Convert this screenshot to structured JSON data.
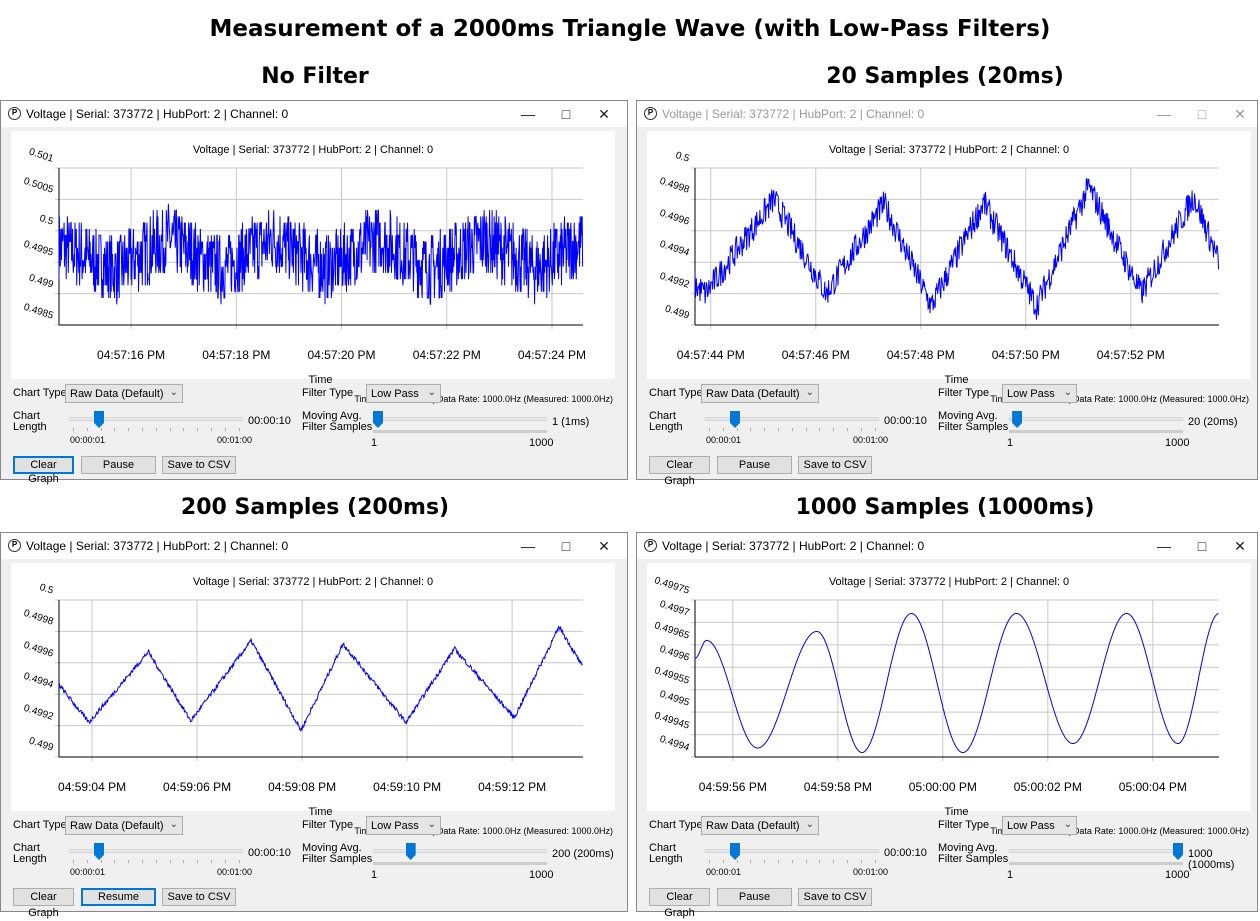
{
  "title": "Measurement of a 2000ms Triangle Wave (with Low-Pass Filters)",
  "colors": {
    "series": "#0000ff",
    "grid": "#c8c8c8",
    "slider": "#0078d7",
    "focus": "#0078d7"
  },
  "common": {
    "window_title": "Voltage | Serial: 373772 | HubPort: 2 | Channel: 0",
    "chart_title": "Voltage | Serial: 373772 | HubPort: 2 | Channel: 0",
    "x_axis_label": "Time",
    "footnote": "Time Base: Device |  Data Rate: 1000.0Hz (Measured: 1000.0Hz)",
    "chart_type_label": "Chart Type",
    "chart_type_value": "Raw Data (Default)",
    "filter_type_label": "Filter Type",
    "filter_type_value": "Low Pass",
    "chart_length_label_1": "Chart",
    "chart_length_label_2": "Length",
    "chart_length_value": "00:00:10",
    "chart_length_min": "00:00:01",
    "chart_length_max": "00:01:00",
    "filter_samples_label_1": "Moving Avg.",
    "filter_samples_label_2": "Filter Samples",
    "filter_samples_min": "1",
    "filter_samples_max": "1000",
    "clear_label": "Clear Graph",
    "save_label": "Save to CSV",
    "icons": {
      "app": "phidgets-logo-icon",
      "minimize": "minimize-icon",
      "maximize": "maximize-icon",
      "close": "close-icon",
      "dropdown": "chevron-down-icon"
    }
  },
  "panels": [
    {
      "heading": "No Filter",
      "filter_samples": 1,
      "filter_samples_text": "1 (1ms)",
      "pause_label": "Pause",
      "focused": "clear",
      "chart_data": {
        "type": "line",
        "yticks": [
          "0.4985",
          "0.499",
          "0.4995",
          "0.5",
          "0.5005",
          "0.501"
        ],
        "ylim": [
          0.4985,
          0.501
        ],
        "xticks": [
          "04:57:16 PM",
          "04:57:18 PM",
          "04:57:20 PM",
          "04:57:22 PM",
          "04:57:24 PM"
        ],
        "xlim": [
          "04:57:14.63",
          "04:57:24.59"
        ],
        "grid": true,
        "points": [
          [
            "04:57:14.63",
            0.49975
          ],
          [
            "04:57:15.7",
            0.49935
          ],
          [
            "04:57:16.7",
            0.49985
          ],
          [
            "04:57:17.7",
            0.49935
          ],
          [
            "04:57:18.7",
            0.49985
          ],
          [
            "04:57:19.7",
            0.49935
          ],
          [
            "04:57:20.7",
            0.49985
          ],
          [
            "04:57:21.7",
            0.49935
          ],
          [
            "04:57:22.7",
            0.49985
          ],
          [
            "04:57:23.7",
            0.49935
          ],
          [
            "04:57:24.59",
            0.4998
          ]
        ]
      }
    },
    {
      "heading": "20 Samples (20ms)",
      "filter_samples": 20,
      "filter_samples_text": "20 (20ms)",
      "pause_label": "Pause",
      "focused": "",
      "chart_data": {
        "type": "line",
        "yticks": [
          "0.499",
          "0.4992",
          "0.4994",
          "0.4996",
          "0.4998",
          "0.5"
        ],
        "ylim": [
          0.499,
          0.5
        ],
        "xticks": [
          "04:57:44 PM",
          "04:57:46 PM",
          "04:57:48 PM",
          "04:57:50 PM",
          "04:57:52 PM"
        ],
        "xlim": [
          "04:57:43.70",
          "04:57:53.68"
        ],
        "grid": true,
        "points": [
          [
            "04:57:43.70",
            0.49925
          ],
          [
            "04:57:43.9",
            0.4992
          ],
          [
            "04:57:45.2",
            0.4998
          ],
          [
            "04:57:46.2",
            0.4992
          ],
          [
            "04:57:47.3",
            0.49977
          ],
          [
            "04:57:48.2",
            0.49912
          ],
          [
            "04:57:49.2",
            0.49978
          ],
          [
            "04:57:50.2",
            0.49912
          ],
          [
            "04:57:51.2",
            0.49988
          ],
          [
            "04:57:52.2",
            0.4992
          ],
          [
            "04:57:53.2",
            0.49982
          ],
          [
            "04:57:53.68",
            0.4994
          ]
        ]
      }
    },
    {
      "heading": "200 Samples (200ms)",
      "filter_samples": 200,
      "filter_samples_text": "200 (200ms)",
      "pause_label": "Resume",
      "focused": "pause",
      "chart_data": {
        "type": "line",
        "yticks": [
          "0.499",
          "0.4992",
          "0.4994",
          "0.4996",
          "0.4998",
          "0.5"
        ],
        "ylim": [
          0.499,
          0.5
        ],
        "xticks": [
          "04:59:04 PM",
          "04:59:06 PM",
          "04:59:08 PM",
          "04:59:10 PM",
          "04:59:12 PM"
        ],
        "xlim": [
          "04:59:03.37",
          "04:59:13.35"
        ],
        "grid": true,
        "points": [
          [
            "04:59:03.37",
            0.49946
          ],
          [
            "04:59:03.94",
            0.49922
          ],
          [
            "04:59:05.07",
            0.49967
          ],
          [
            "04:59:05.88",
            0.49923
          ],
          [
            "04:59:07.03",
            0.49974
          ],
          [
            "04:59:07.98",
            0.49917
          ],
          [
            "04:59:08.78",
            0.49972
          ],
          [
            "04:59:09.98",
            0.49922
          ],
          [
            "04:59:10.9",
            0.49969
          ],
          [
            "04:59:12.04",
            0.49925
          ],
          [
            "04:59:12.9",
            0.49983
          ],
          [
            "04:59:13.35",
            0.49957
          ]
        ]
      }
    },
    {
      "heading": "1000 Samples (1000ms)",
      "filter_samples": 1000,
      "filter_samples_text": "1000 (1000ms)",
      "pause_label": "Pause",
      "focused": "",
      "chart_data": {
        "type": "line",
        "yticks": [
          "0.4994",
          "0.49945",
          "0.4995",
          "0.49955",
          "0.4996",
          "0.49965",
          "0.4997",
          "0.49975"
        ],
        "ylim": [
          0.4994,
          0.49975
        ],
        "xticks": [
          "04:59:56 PM",
          "04:59:58 PM",
          "05:00:00 PM",
          "05:00:02 PM",
          "05:00:04 PM"
        ],
        "xlim": [
          "04:59:55.28",
          "05:00:05.26"
        ],
        "grid": true,
        "points": [
          [
            "04:59:55.28",
            0.49962
          ],
          [
            "04:59:55.5",
            0.49966
          ],
          [
            "04:59:56.47",
            0.49942
          ],
          [
            "04:59:57.6",
            0.49968
          ],
          [
            "04:59:58.46",
            0.49941
          ],
          [
            "04:59:59.4",
            0.49972
          ],
          [
            "05:00:00.38",
            0.49941
          ],
          [
            "05:00:01.4",
            0.49972
          ],
          [
            "05:00:02.48",
            0.49943
          ],
          [
            "05:00:03.5",
            0.49972
          ],
          [
            "05:00:04.48",
            0.49943
          ],
          [
            "05:00:05.26",
            0.49972
          ]
        ]
      }
    }
  ]
}
